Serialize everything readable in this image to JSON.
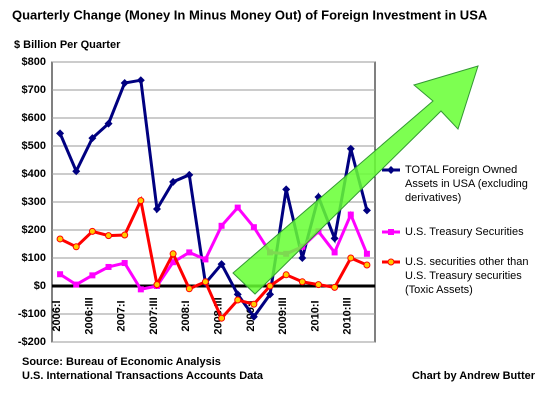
{
  "chart_data": {
    "type": "line",
    "title": "Quarterly Change (Money In Minus Money Out) of Foreign Investment in USA",
    "y_axis_label": "$ Billion Per Quarter",
    "categories": [
      "2006:I",
      null,
      "2006:III",
      null,
      "2007:I",
      null,
      "2007:III",
      null,
      "2008:I",
      null,
      "2008:III",
      null,
      "2009:I",
      null,
      "2009:III",
      null,
      "2010:I",
      null,
      "2010:III",
      null
    ],
    "series": [
      {
        "name": "TOTAL Foreign Owned Assets in USA (excluding derivatives)",
        "color": "#000080",
        "marker": "diamond",
        "values": [
          545,
          410,
          528,
          580,
          725,
          735,
          275,
          372,
          397,
          10,
          78,
          -30,
          -110,
          -30,
          345,
          100,
          318,
          170,
          490,
          270
        ]
      },
      {
        "name": "U.S. Treasury Securities",
        "color": "#ff00ff",
        "marker": "square",
        "values": [
          42,
          5,
          38,
          68,
          82,
          -12,
          0,
          85,
          120,
          95,
          215,
          280,
          210,
          120,
          115,
          140,
          195,
          120,
          255,
          115
        ]
      },
      {
        "name": "U.S. securities other than U.S. Treasury securities (Toxic Assets)",
        "color": "#ff0000",
        "marker": "circle",
        "values": [
          168,
          140,
          195,
          180,
          182,
          305,
          5,
          115,
          -10,
          15,
          -115,
          -50,
          -65,
          0,
          40,
          15,
          5,
          -5,
          100,
          75
        ]
      }
    ],
    "ylim": [
      -200,
      800
    ],
    "yticks": [
      {
        "value": -200,
        "label": "-$200"
      },
      {
        "value": -100,
        "label": "-$100"
      },
      {
        "value": 0,
        "label": "$0"
      },
      {
        "value": 100,
        "label": "$100"
      },
      {
        "value": 200,
        "label": "$200"
      },
      {
        "value": 300,
        "label": "$300"
      },
      {
        "value": 400,
        "label": "$400"
      },
      {
        "value": 500,
        "label": "$500"
      },
      {
        "value": 600,
        "label": "$600"
      },
      {
        "value": 700,
        "label": "$700"
      },
      {
        "value": 800,
        "label": "$800"
      }
    ],
    "grid": true,
    "legend": "right",
    "source": [
      "Source: Bureau of Economic Analysis",
      "U.S. International Transactions Accounts Data"
    ],
    "credit": "Chart by Andrew Butter"
  }
}
